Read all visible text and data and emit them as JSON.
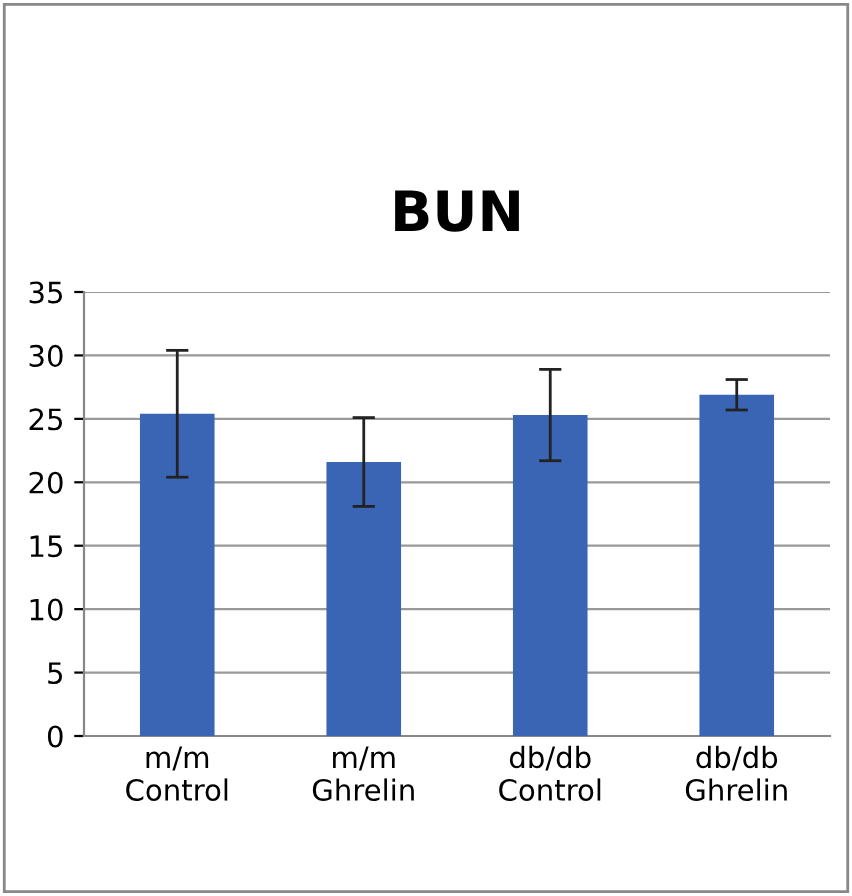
{
  "chart_data": {
    "type": "bar",
    "title": "BUN",
    "categories": [
      "m/m\nControl",
      "m/m\nGhrelin",
      "db/db\nControl",
      "db/db\nGhrelin"
    ],
    "values": [
      25.4,
      21.6,
      25.3,
      26.9
    ],
    "errors": [
      5.0,
      3.5,
      3.6,
      1.2
    ],
    "color": "#3a65b5",
    "ylim": [
      0,
      35
    ],
    "yticks": [
      0,
      5,
      10,
      15,
      20,
      25,
      30,
      35
    ],
    "grid": "y",
    "legend": false
  }
}
